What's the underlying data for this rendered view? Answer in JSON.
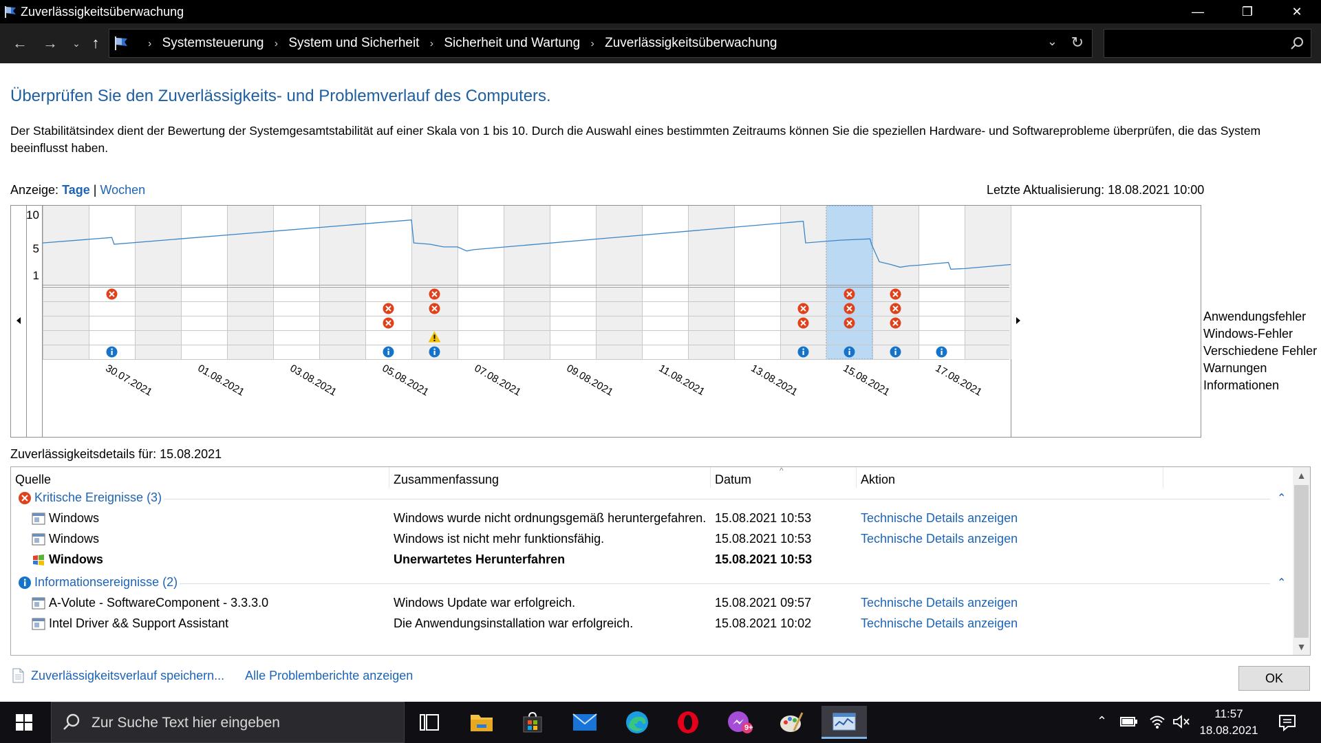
{
  "window": {
    "title": "Zuverlässigkeitsüberwachung",
    "controls": {
      "minimize": "—",
      "restore": "❐",
      "close": "✕"
    }
  },
  "address": {
    "breadcrumbs": [
      "Systemsteuerung",
      "System und Sicherheit",
      "Sicherheit und Wartung",
      "Zuverlässigkeitsüberwachung"
    ],
    "search_placeholder": ""
  },
  "page": {
    "heading": "Überprüfen Sie den Zuverlässigkeits- und Problemverlauf des Computers.",
    "description": "Der Stabilitätsindex dient der Bewertung der Systemgesamtstabilität auf einer Skala von 1 bis 10. Durch die Auswahl eines bestimmten Zeitraums können Sie die speziellen Hardware- und Softwareprobleme überprüfen, die das System beeinflusst haben.",
    "view_label": "Anzeige:",
    "view_days": "Tage",
    "view_sep": "|",
    "view_weeks": "Wochen",
    "last_update": "Letzte Aktualisierung: 18.08.2021 10:00"
  },
  "chart_data": {
    "type": "line",
    "y_ticks": [
      "10",
      "5",
      "1"
    ],
    "ylim": [
      0,
      11
    ],
    "columns": [
      "29.07.2021",
      "30.07.2021",
      "31.07.2021",
      "01.08.2021",
      "02.08.2021",
      "03.08.2021",
      "04.08.2021",
      "05.08.2021",
      "06.08.2021",
      "07.08.2021",
      "08.08.2021",
      "09.08.2021",
      "10.08.2021",
      "11.08.2021",
      "12.08.2021",
      "13.08.2021",
      "14.08.2021",
      "15.08.2021",
      "16.08.2021",
      "17.08.2021",
      "18.08.2021"
    ],
    "x_labels": [
      {
        "label": "30.07.2021",
        "col": 1
      },
      {
        "label": "01.08.2021",
        "col": 3
      },
      {
        "label": "03.08.2021",
        "col": 5
      },
      {
        "label": "05.08.2021",
        "col": 7
      },
      {
        "label": "07.08.2021",
        "col": 9
      },
      {
        "label": "09.08.2021",
        "col": 11
      },
      {
        "label": "11.08.2021",
        "col": 13
      },
      {
        "label": "13.08.2021",
        "col": 15
      },
      {
        "label": "15.08.2021",
        "col": 17
      },
      {
        "label": "17.08.2021",
        "col": 19
      }
    ],
    "selected_col": 17,
    "stability_series": [
      [
        0.0,
        5.8
      ],
      [
        1.5,
        6.6
      ],
      [
        1.55,
        5.6
      ],
      [
        8.0,
        9.2
      ],
      [
        8.05,
        5.8
      ],
      [
        8.4,
        5.6
      ],
      [
        8.7,
        5.2
      ],
      [
        9.0,
        5.2
      ],
      [
        9.2,
        4.6
      ],
      [
        9.35,
        4.8
      ],
      [
        16.5,
        9.0
      ],
      [
        16.55,
        5.8
      ],
      [
        17.3,
        6.2
      ],
      [
        17.95,
        6.4
      ],
      [
        17.98,
        5.6
      ],
      [
        18.15,
        3.0
      ],
      [
        18.4,
        2.6
      ],
      [
        18.6,
        2.2
      ],
      [
        18.8,
        2.4
      ],
      [
        19.0,
        2.5
      ],
      [
        19.65,
        2.9
      ],
      [
        19.7,
        1.9
      ],
      [
        20.0,
        2.0
      ],
      [
        21.0,
        2.6
      ]
    ],
    "event_rows": [
      "Anwendungsfehler",
      "Windows-Fehler",
      "Verschiedene Fehler",
      "Warnungen",
      "Informationen"
    ],
    "events": [
      {
        "col": 1,
        "row": 0,
        "kind": "error"
      },
      {
        "col": 1,
        "row": 4,
        "kind": "info"
      },
      {
        "col": 7,
        "row": 1,
        "kind": "error"
      },
      {
        "col": 7,
        "row": 2,
        "kind": "error"
      },
      {
        "col": 7,
        "row": 4,
        "kind": "info"
      },
      {
        "col": 8,
        "row": 0,
        "kind": "error"
      },
      {
        "col": 8,
        "row": 1,
        "kind": "error"
      },
      {
        "col": 8,
        "row": 3,
        "kind": "warning"
      },
      {
        "col": 8,
        "row": 4,
        "kind": "info"
      },
      {
        "col": 16,
        "row": 1,
        "kind": "error"
      },
      {
        "col": 16,
        "row": 2,
        "kind": "error"
      },
      {
        "col": 16,
        "row": 4,
        "kind": "info"
      },
      {
        "col": 17,
        "row": 0,
        "kind": "error"
      },
      {
        "col": 17,
        "row": 1,
        "kind": "error"
      },
      {
        "col": 17,
        "row": 2,
        "kind": "error"
      },
      {
        "col": 17,
        "row": 4,
        "kind": "info"
      },
      {
        "col": 18,
        "row": 0,
        "kind": "error"
      },
      {
        "col": 18,
        "row": 1,
        "kind": "error"
      },
      {
        "col": 18,
        "row": 2,
        "kind": "error"
      },
      {
        "col": 18,
        "row": 4,
        "kind": "info"
      },
      {
        "col": 19,
        "row": 4,
        "kind": "info"
      }
    ],
    "colors": {
      "line": "#3a86c8",
      "selected": "#bcd9f3",
      "shade": "#efefef",
      "error": "#e0401a",
      "info": "#1573c9",
      "warning": "#f2c200"
    }
  },
  "details": {
    "title": "Zuverlässigkeitsdetails für: 15.08.2021",
    "columns": [
      "Quelle",
      "Zusammenfassung",
      "Datum",
      "Aktion"
    ],
    "groups": [
      {
        "label": "Kritische Ereignisse (3)",
        "icon": "error-icon",
        "rows": [
          {
            "source": "Windows",
            "summary": "Windows wurde nicht ordnungsgemäß heruntergefahren.",
            "date": "15.08.2021 10:53",
            "action": "Technische Details anzeigen",
            "bold": false
          },
          {
            "source": "Windows",
            "summary": "Windows ist nicht mehr funktionsfähig.",
            "date": "15.08.2021 10:53",
            "action": "Technische Details anzeigen",
            "bold": false
          },
          {
            "source": "Windows",
            "summary": "Unerwartetes Herunterfahren",
            "date": "15.08.2021 10:53",
            "action": "",
            "bold": true
          }
        ]
      },
      {
        "label": "Informationsereignisse (2)",
        "icon": "info-icon",
        "rows": [
          {
            "source": "A-Volute - SoftwareComponent - 3.3.3.0",
            "summary": "Windows Update war erfolgreich.",
            "date": "15.08.2021 09:57",
            "action": "Technische Details anzeigen",
            "bold": false
          },
          {
            "source": "Intel Driver && Support Assistant",
            "summary": "Die Anwendungsinstallation war erfolgreich.",
            "date": "15.08.2021 10:02",
            "action": "Technische Details anzeigen",
            "bold": false
          }
        ]
      }
    ]
  },
  "footer": {
    "save_link": "Zuverlässigkeitsverlauf speichern...",
    "reports_link": "Alle Problemberichte anzeigen",
    "ok": "OK"
  },
  "taskbar": {
    "search_placeholder": "Zur Suche Text hier eingeben",
    "apps": [
      "task-view-icon",
      "file-explorer-icon",
      "store-icon",
      "mail-icon",
      "edge-icon",
      "opera-icon",
      "messenger-icon",
      "paint-icon",
      "reliability-monitor-icon"
    ],
    "messenger_badge": "9+",
    "time": "11:57",
    "date": "18.08.2021"
  }
}
